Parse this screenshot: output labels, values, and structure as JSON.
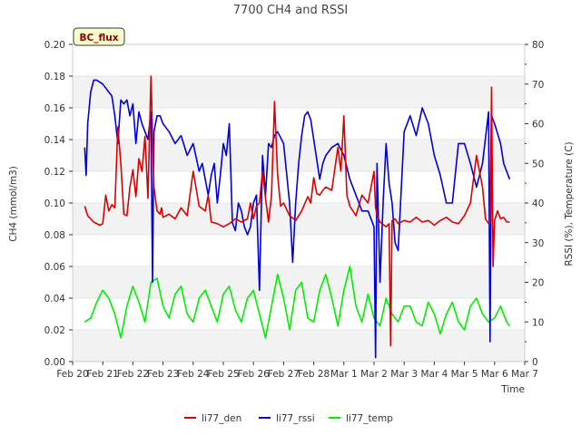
{
  "chart_data": {
    "type": "line",
    "title": "7700 CH4 and RSSI",
    "xlabel": "Time",
    "ylabel": "CH4 (mmol/m3)",
    "y2label": "RSSI (%), Temperature (C)",
    "ylim": [
      0.0,
      0.2
    ],
    "y2lim": [
      0,
      80
    ],
    "xlim": [
      0,
      15
    ],
    "grid": "horizontal bands",
    "legend_position": "bottom-center",
    "badge": "BC_flux",
    "x_ticks": [
      "Feb 20",
      "Feb 21",
      "Feb 22",
      "Feb 23",
      "Feb 24",
      "Feb 25",
      "Feb 26",
      "Feb 27",
      "Feb 28",
      "Mar 1",
      "Mar 2",
      "Mar 3",
      "Mar 4",
      "Mar 5",
      "Mar 6",
      "Mar 7"
    ],
    "y_ticks": [
      "0.00",
      "0.02",
      "0.04",
      "0.06",
      "0.08",
      "0.10",
      "0.12",
      "0.14",
      "0.16",
      "0.18",
      "0.20"
    ],
    "y2_ticks": [
      "0",
      "10",
      "20",
      "30",
      "40",
      "50",
      "60",
      "70",
      "80"
    ],
    "series": [
      {
        "name": "li77_den",
        "color": "#dd0000",
        "axis": "left",
        "x": [
          0.4,
          0.5,
          0.7,
          0.9,
          1.0,
          1.1,
          1.2,
          1.3,
          1.4,
          1.5,
          1.6,
          1.7,
          1.8,
          1.9,
          2.0,
          2.1,
          2.2,
          2.3,
          2.4,
          2.5,
          2.6,
          2.7,
          2.8,
          2.9,
          2.95,
          3.0,
          3.2,
          3.4,
          3.6,
          3.8,
          4.0,
          4.2,
          4.4,
          4.5,
          4.6,
          4.8,
          5.0,
          5.2,
          5.4,
          5.6,
          5.8,
          5.9,
          6.0,
          6.1,
          6.2,
          6.3,
          6.4,
          6.5,
          6.6,
          6.7,
          6.8,
          6.9,
          7.0,
          7.2,
          7.4,
          7.6,
          7.8,
          7.9,
          8.0,
          8.1,
          8.2,
          8.3,
          8.4,
          8.6,
          8.8,
          8.9,
          9.0,
          9.1,
          9.2,
          9.4,
          9.6,
          9.8,
          10.0,
          10.05,
          10.1,
          10.15,
          10.2,
          10.4,
          10.5,
          10.55,
          10.6,
          10.7,
          10.8,
          11.0,
          11.2,
          11.4,
          11.6,
          11.8,
          12.0,
          12.2,
          12.4,
          12.6,
          12.8,
          13.0,
          13.2,
          13.4,
          13.6,
          13.7,
          13.8,
          13.85,
          13.9,
          13.95,
          14.0,
          14.1,
          14.2,
          14.3,
          14.4,
          14.5
        ],
        "values": [
          0.098,
          0.092,
          0.088,
          0.086,
          0.087,
          0.105,
          0.095,
          0.099,
          0.097,
          0.148,
          0.125,
          0.093,
          0.092,
          0.11,
          0.121,
          0.104,
          0.128,
          0.12,
          0.142,
          0.103,
          0.18,
          0.11,
          0.095,
          0.093,
          0.097,
          0.091,
          0.093,
          0.09,
          0.097,
          0.092,
          0.12,
          0.098,
          0.095,
          0.105,
          0.088,
          0.087,
          0.085,
          0.087,
          0.09,
          0.088,
          0.09,
          0.1,
          0.09,
          0.098,
          0.1,
          0.12,
          0.103,
          0.088,
          0.105,
          0.164,
          0.118,
          0.098,
          0.1,
          0.092,
          0.089,
          0.095,
          0.104,
          0.1,
          0.116,
          0.106,
          0.105,
          0.108,
          0.11,
          0.108,
          0.135,
          0.12,
          0.155,
          0.105,
          0.098,
          0.092,
          0.105,
          0.1,
          0.12,
          0.097,
          0.093,
          0.09,
          0.088,
          0.085,
          0.087,
          0.01,
          0.089,
          0.09,
          0.087,
          0.089,
          0.088,
          0.091,
          0.088,
          0.089,
          0.086,
          0.089,
          0.091,
          0.088,
          0.087,
          0.092,
          0.1,
          0.13,
          0.11,
          0.09,
          0.087,
          0.088,
          0.173,
          0.06,
          0.089,
          0.095,
          0.09,
          0.091,
          0.088,
          0.088
        ]
      },
      {
        "name": "li77_rssi",
        "color": "#0000dd",
        "axis": "right",
        "x": [
          0.4,
          0.45,
          0.5,
          0.6,
          0.7,
          0.8,
          1.0,
          1.2,
          1.3,
          1.4,
          1.5,
          1.6,
          1.7,
          1.8,
          1.9,
          2.0,
          2.1,
          2.2,
          2.3,
          2.4,
          2.5,
          2.6,
          2.65,
          2.7,
          2.8,
          2.9,
          3.0,
          3.2,
          3.4,
          3.6,
          3.8,
          4.0,
          4.2,
          4.3,
          4.5,
          4.6,
          4.7,
          4.8,
          4.9,
          5.0,
          5.1,
          5.2,
          5.3,
          5.4,
          5.5,
          5.6,
          5.7,
          5.8,
          5.9,
          6.0,
          6.1,
          6.2,
          6.3,
          6.4,
          6.5,
          6.6,
          6.7,
          6.8,
          7.0,
          7.2,
          7.3,
          7.4,
          7.5,
          7.6,
          7.7,
          7.8,
          7.9,
          8.0,
          8.2,
          8.3,
          8.4,
          8.6,
          8.8,
          9.0,
          9.2,
          9.4,
          9.6,
          9.8,
          10.0,
          10.05,
          10.1,
          10.2,
          10.3,
          10.4,
          10.5,
          10.6,
          10.7,
          10.8,
          11.0,
          11.2,
          11.4,
          11.6,
          11.8,
          12.0,
          12.2,
          12.4,
          12.6,
          12.8,
          13.0,
          13.2,
          13.4,
          13.6,
          13.8,
          13.85,
          13.9,
          14.0,
          14.2,
          14.3,
          14.4,
          14.5
        ],
        "values": [
          54,
          47,
          60,
          68,
          71,
          71,
          70,
          68,
          67,
          62,
          55,
          66,
          65,
          66,
          62,
          65,
          55,
          63,
          60,
          58,
          56,
          63,
          20,
          58,
          62,
          62,
          60,
          58,
          55,
          57,
          52,
          55,
          48,
          50,
          42,
          47,
          50,
          40,
          47,
          55,
          52,
          60,
          35,
          33,
          40,
          38,
          34,
          32,
          34,
          40,
          42,
          18,
          52,
          42,
          55,
          54,
          57,
          58,
          55,
          40,
          25,
          40,
          50,
          57,
          62,
          63,
          61,
          56,
          46,
          50,
          52,
          54,
          55,
          52,
          46,
          42,
          38,
          38,
          34,
          1,
          50,
          20,
          40,
          55,
          45,
          40,
          30,
          28,
          58,
          62,
          57,
          64,
          60,
          52,
          47,
          40,
          40,
          55,
          55,
          50,
          44,
          50,
          63,
          5,
          62,
          60,
          55,
          50,
          48,
          46
        ]
      },
      {
        "name": "li77_temp",
        "color": "#00ee00",
        "axis": "right",
        "x": [
          0.4,
          0.6,
          0.8,
          1.0,
          1.2,
          1.4,
          1.6,
          1.8,
          2.0,
          2.2,
          2.4,
          2.6,
          2.8,
          3.0,
          3.2,
          3.4,
          3.6,
          3.8,
          4.0,
          4.2,
          4.4,
          4.6,
          4.8,
          5.0,
          5.2,
          5.4,
          5.6,
          5.8,
          6.0,
          6.2,
          6.4,
          6.6,
          6.8,
          7.0,
          7.2,
          7.4,
          7.6,
          7.8,
          8.0,
          8.2,
          8.4,
          8.6,
          8.8,
          9.0,
          9.2,
          9.4,
          9.6,
          9.8,
          10.0,
          10.2,
          10.4,
          10.6,
          10.8,
          11.0,
          11.2,
          11.4,
          11.6,
          11.8,
          12.0,
          12.2,
          12.4,
          12.6,
          12.8,
          13.0,
          13.2,
          13.4,
          13.6,
          13.8,
          14.0,
          14.2,
          14.4,
          14.5
        ],
        "values": [
          10,
          11,
          15,
          18,
          16,
          12,
          6,
          14,
          19,
          15,
          10,
          20,
          21,
          14,
          11,
          17,
          19,
          12,
          10,
          16,
          18,
          14,
          10,
          17,
          19,
          13,
          10,
          16,
          18,
          12,
          6,
          14,
          22,
          16,
          8,
          18,
          20,
          11,
          10,
          18,
          22,
          16,
          9,
          18,
          24,
          14,
          10,
          17,
          11,
          9,
          16,
          12,
          10,
          14,
          14,
          10,
          9,
          15,
          12,
          7,
          12,
          15,
          10,
          8,
          14,
          16,
          12,
          10,
          11,
          14,
          10,
          9
        ]
      }
    ]
  }
}
